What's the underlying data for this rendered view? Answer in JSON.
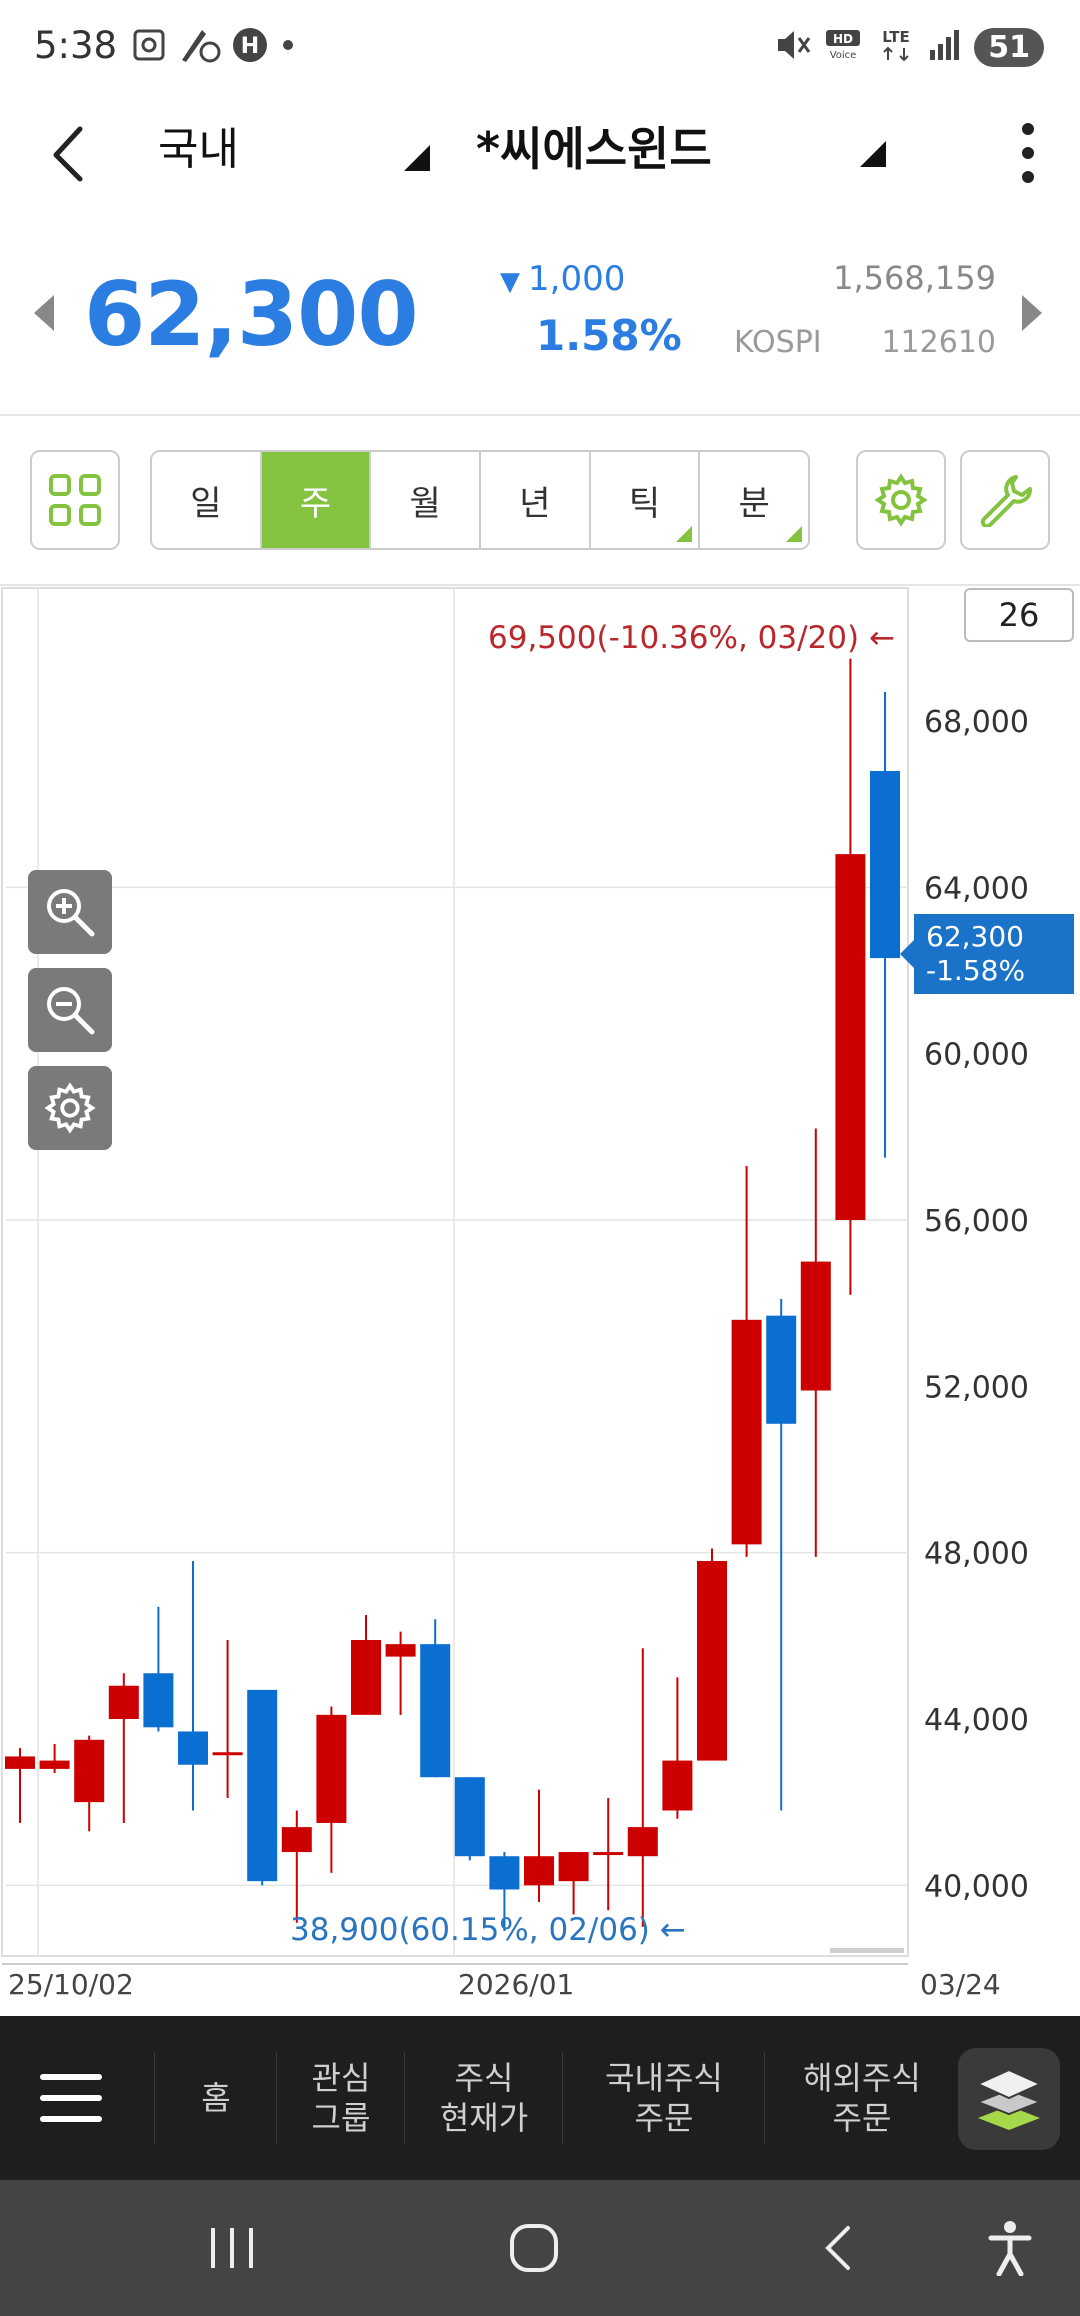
{
  "status_bar": {
    "time": "5:38",
    "battery": "51",
    "network": "LTE"
  },
  "header": {
    "market_label": "국내",
    "stock_name": "*씨에스윈드"
  },
  "quote": {
    "price": "62,300",
    "change": "1,000",
    "change_percent": "1.58%",
    "volume": "1,568,159",
    "index": "KOSPI",
    "code": "112610",
    "color": "#2b7de1"
  },
  "toolbar": {
    "periods": [
      {
        "label": "일",
        "active": false,
        "corner": false
      },
      {
        "label": "주",
        "active": true,
        "corner": false
      },
      {
        "label": "월",
        "active": false,
        "corner": false
      },
      {
        "label": "년",
        "active": false,
        "corner": false
      },
      {
        "label": "틱",
        "active": false,
        "corner": true
      },
      {
        "label": "분",
        "active": false,
        "corner": true
      }
    ],
    "accent": "#83c33f"
  },
  "chart": {
    "count": "26",
    "high_label": "69,500(-10.36%, 03/20)",
    "low_label": "38,900(60.15%, 02/06)",
    "current_price": "62,300",
    "current_pct": "-1.58%",
    "x_labels": [
      "25/10/02",
      "2026/01",
      "03/24"
    ]
  },
  "chart_data": {
    "type": "candlestick",
    "ylim": [
      38300,
      71200
    ],
    "y_ticks": [
      40000,
      44000,
      48000,
      52000,
      56000,
      60000,
      64000,
      68000
    ],
    "up_color": "#cc0000",
    "down_color": "#0b6fd1",
    "candles": [
      {
        "o": 42800,
        "h": 43300,
        "l": 41500,
        "c": 43100
      },
      {
        "o": 42800,
        "h": 43400,
        "l": 42700,
        "c": 43000
      },
      {
        "o": 42000,
        "h": 43600,
        "l": 41300,
        "c": 43500
      },
      {
        "o": 44000,
        "h": 45100,
        "l": 41500,
        "c": 44800
      },
      {
        "o": 45100,
        "h": 46700,
        "l": 43700,
        "c": 43800
      },
      {
        "o": 43700,
        "h": 47800,
        "l": 41800,
        "c": 42900
      },
      {
        "o": 43200,
        "h": 45900,
        "l": 42100,
        "c": 43200
      },
      {
        "o": 44700,
        "h": 44700,
        "l": 40000,
        "c": 40100
      },
      {
        "o": 40800,
        "h": 41800,
        "l": 39100,
        "c": 41400
      },
      {
        "o": 41500,
        "h": 44300,
        "l": 40300,
        "c": 44100
      },
      {
        "o": 44100,
        "h": 46500,
        "l": 44100,
        "c": 45900
      },
      {
        "o": 45500,
        "h": 46100,
        "l": 44100,
        "c": 45800
      },
      {
        "o": 45800,
        "h": 46400,
        "l": 42600,
        "c": 42600
      },
      {
        "o": 42600,
        "h": 42600,
        "l": 40600,
        "c": 40700
      },
      {
        "o": 40700,
        "h": 40800,
        "l": 38900,
        "c": 39900
      },
      {
        "o": 40000,
        "h": 42300,
        "l": 39600,
        "c": 40700
      },
      {
        "o": 40100,
        "h": 40800,
        "l": 39300,
        "c": 40800
      },
      {
        "o": 40800,
        "h": 42100,
        "l": 39400,
        "c": 40800
      },
      {
        "o": 40700,
        "h": 45700,
        "l": 39000,
        "c": 41400
      },
      {
        "o": 41800,
        "h": 45000,
        "l": 41600,
        "c": 43000
      },
      {
        "o": 43000,
        "h": 48100,
        "l": 43000,
        "c": 47800
      },
      {
        "o": 48200,
        "h": 57300,
        "l": 47900,
        "c": 53600
      },
      {
        "o": 53700,
        "h": 54100,
        "l": 41800,
        "c": 51100
      },
      {
        "o": 51900,
        "h": 58200,
        "l": 47900,
        "c": 55000
      },
      {
        "o": 56000,
        "h": 69500,
        "l": 54200,
        "c": 64800
      },
      {
        "o": 66800,
        "h": 68700,
        "l": 57500,
        "c": 62300
      }
    ],
    "x_tick_labels": [
      "25/10/02",
      "2026/01",
      "03/24"
    ],
    "current": 62300
  },
  "bottom_nav": {
    "items": [
      {
        "label": "홈"
      },
      {
        "label": "관심\n그룹"
      },
      {
        "label": "주식\n현재가"
      },
      {
        "label": "국내주식\n주문"
      },
      {
        "label": "해외주식\n주문"
      }
    ]
  }
}
